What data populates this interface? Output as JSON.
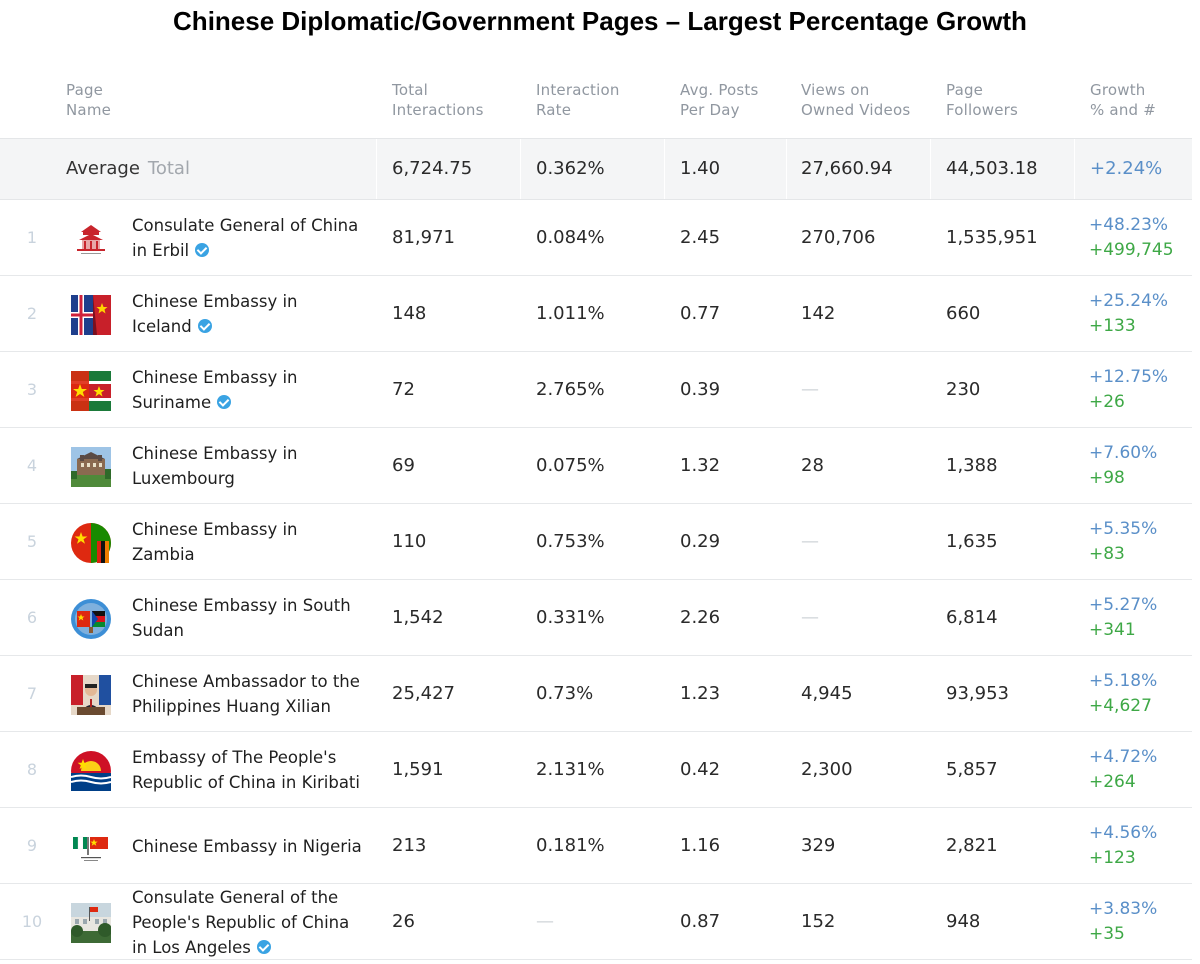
{
  "title": "Chinese Diplomatic/Government Pages – Largest Percentage Growth",
  "headers": {
    "page_name": "Page\nName",
    "total_interactions": "Total\nInteractions",
    "interaction_rate": "Interaction\nRate",
    "avg_posts": "Avg. Posts\nPer Day",
    "views": "Views on\nOwned Videos",
    "followers": "Page\nFollowers",
    "growth": "Growth\n% and #"
  },
  "average": {
    "label": "Average",
    "total_label": "Total",
    "total_interactions": "6,724.75",
    "interaction_rate": "0.362%",
    "avg_posts": "1.40",
    "views": "27,660.94",
    "followers": "44,503.18",
    "growth": "+2.24%"
  },
  "rows": [
    {
      "rank": "1",
      "name": "Consulate General of China in Erbil",
      "verified": true,
      "total_interactions": "81,971",
      "interaction_rate": "0.084%",
      "avg_posts": "2.45",
      "views": "270,706",
      "followers": "1,535,951",
      "growth_pct": "+48.23%",
      "growth_num": "+499,745",
      "logo_icon": "temple-logo-icon"
    },
    {
      "rank": "2",
      "name": "Chinese Embassy in Iceland",
      "verified": true,
      "total_interactions": "148",
      "interaction_rate": "1.011%",
      "avg_posts": "0.77",
      "views": "142",
      "followers": "660",
      "growth_pct": "+25.24%",
      "growth_num": "+133",
      "logo_icon": "flags-iceland-china-icon"
    },
    {
      "rank": "3",
      "name": "Chinese Embassy in Suriname",
      "verified": true,
      "total_interactions": "72",
      "interaction_rate": "2.765%",
      "avg_posts": "0.39",
      "views": "—",
      "followers": "230",
      "growth_pct": "+12.75%",
      "growth_num": "+26",
      "logo_icon": "flags-suriname-china-icon"
    },
    {
      "rank": "4",
      "name": "Chinese Embassy in Luxembourg",
      "verified": false,
      "total_interactions": "69",
      "interaction_rate": "0.075%",
      "avg_posts": "1.32",
      "views": "28",
      "followers": "1,388",
      "growth_pct": "+7.60%",
      "growth_num": "+98",
      "logo_icon": "building-photo-icon"
    },
    {
      "rank": "5",
      "name": "Chinese Embassy in Zambia",
      "verified": false,
      "total_interactions": "110",
      "interaction_rate": "0.753%",
      "avg_posts": "0.29",
      "views": "—",
      "followers": "1,635",
      "growth_pct": "+5.35%",
      "growth_num": "+83",
      "logo_icon": "flags-zambia-china-icon"
    },
    {
      "rank": "6",
      "name": "Chinese Embassy in South Sudan",
      "verified": false,
      "total_interactions": "1,542",
      "interaction_rate": "0.331%",
      "avg_posts": "2.26",
      "views": "—",
      "followers": "6,814",
      "growth_pct": "+5.27%",
      "growth_num": "+341",
      "logo_icon": "flags-southsudan-china-icon"
    },
    {
      "rank": "7",
      "name": "Chinese Ambassador to the Philippines Huang Xilian",
      "verified": false,
      "total_interactions": "25,427",
      "interaction_rate": "0.73%",
      "avg_posts": "1.23",
      "views": "4,945",
      "followers": "93,953",
      "growth_pct": "+5.18%",
      "growth_num": "+4,627",
      "logo_icon": "ambassador-photo-icon"
    },
    {
      "rank": "8",
      "name": "Embassy of The People's Republic of China in Kiribati",
      "verified": false,
      "total_interactions": "1,591",
      "interaction_rate": "2.131%",
      "avg_posts": "0.42",
      "views": "2,300",
      "followers": "5,857",
      "growth_pct": "+4.72%",
      "growth_num": "+264",
      "logo_icon": "flags-kiribati-china-icon"
    },
    {
      "rank": "9",
      "name": "Chinese Embassy in Nigeria",
      "verified": false,
      "total_interactions": "213",
      "interaction_rate": "0.181%",
      "avg_posts": "1.16",
      "views": "329",
      "followers": "2,821",
      "growth_pct": "+4.56%",
      "growth_num": "+123",
      "logo_icon": "flags-nigeria-china-icon"
    },
    {
      "rank": "10",
      "name": "Consulate General of the People's Republic of China in Los Angeles",
      "verified": true,
      "total_interactions": "26",
      "interaction_rate": "—",
      "avg_posts": "0.87",
      "views": "152",
      "followers": "948",
      "growth_pct": "+3.83%",
      "growth_num": "+35",
      "logo_icon": "consulate-photo-icon"
    }
  ]
}
